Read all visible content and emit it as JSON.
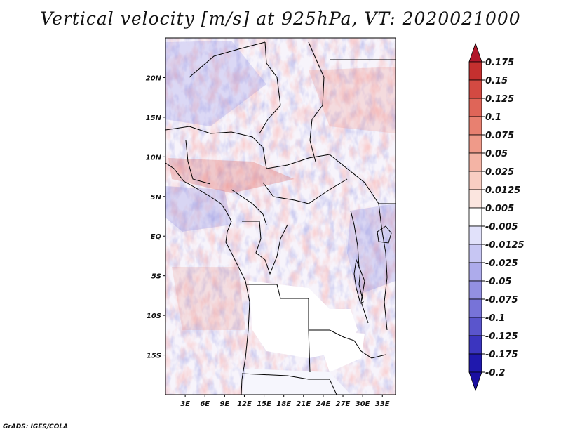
{
  "title": "Vertical velocity [m/s] at 925hPa, VT: 2020021000",
  "credit": "GrADS: IGES/COLA",
  "map": {
    "region": "Central Africa",
    "lon_range": [
      0,
      35
    ],
    "lat_range": [
      -20,
      25
    ],
    "lon_labels": [
      "3E",
      "6E",
      "9E",
      "12E",
      "15E",
      "18E",
      "21E",
      "24E",
      "27E",
      "30E",
      "33E"
    ],
    "lon_values": [
      3,
      6,
      9,
      12,
      15,
      18,
      21,
      24,
      27,
      30,
      33
    ],
    "lat_labels": [
      "20N",
      "15N",
      "10N",
      "5N",
      "EQ",
      "5S",
      "10S",
      "15S"
    ],
    "lat_values": [
      20,
      15,
      10,
      5,
      0,
      -5,
      -10,
      -15
    ]
  },
  "colorbar": {
    "labels": [
      "0.175",
      "0.15",
      "0.125",
      "0.1",
      "0.075",
      "0.05",
      "0.025",
      "0.0125",
      "0.005",
      "-0.005",
      "-0.0125",
      "-0.025",
      "-0.05",
      "-0.075",
      "-0.1",
      "-0.125",
      "-0.175",
      "-0.2"
    ],
    "colors": [
      "#b2182b",
      "#c4302f",
      "#d34a42",
      "#df6558",
      "#e88070",
      "#ef9a89",
      "#f4b4a5",
      "#f8cdc2",
      "#fbe5df",
      "#ffffff",
      "#e1e1fa",
      "#c7c6f3",
      "#adabeb",
      "#9390e2",
      "#7773d8",
      "#5a55cc",
      "#3b35bf",
      "#1f18ad",
      "#1a0ea0"
    ]
  }
}
